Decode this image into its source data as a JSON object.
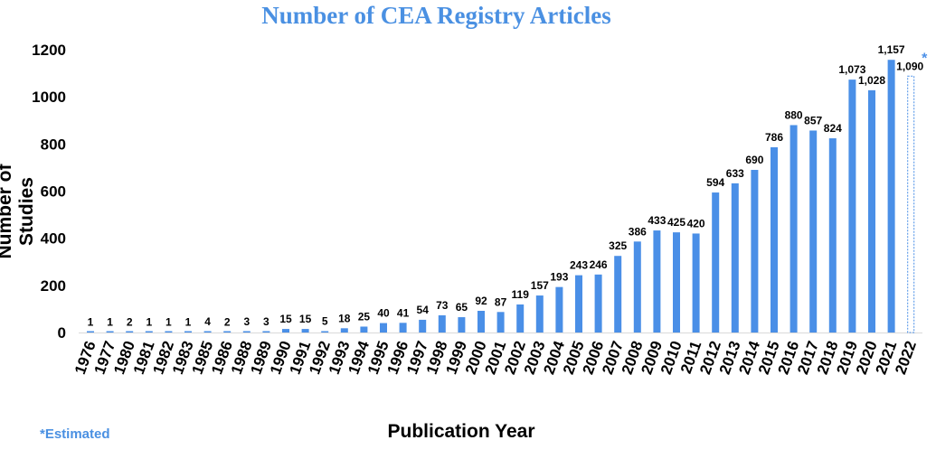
{
  "chart_data": {
    "type": "bar",
    "title": "Number of CEA Registry Articles",
    "xlabel": "Publication Year",
    "ylabel": "Number of Studies",
    "note": "*Estimated",
    "estimated_marker": "*",
    "ylim": [
      0,
      1200
    ],
    "yticks": [
      0,
      200,
      400,
      600,
      800,
      1000,
      1200
    ],
    "grid": false,
    "bar_color": "#4a8fe7",
    "estimated_color": "#4a8fe7",
    "categories": [
      "1976",
      "1977",
      "1980",
      "1981",
      "1982",
      "1983",
      "1985",
      "1986",
      "1988",
      "1989",
      "1990",
      "1991",
      "1992",
      "1993",
      "1994",
      "1995",
      "1996",
      "1997",
      "1998",
      "1999",
      "2000",
      "2001",
      "2002",
      "2003",
      "2004",
      "2005",
      "2006",
      "2007",
      "2008",
      "2009",
      "2010",
      "2011",
      "2012",
      "2013",
      "2014",
      "2015",
      "2016",
      "2017",
      "2018",
      "2019",
      "2020",
      "2021",
      "2022"
    ],
    "values": [
      1,
      1,
      2,
      1,
      1,
      1,
      4,
      2,
      3,
      3,
      15,
      15,
      5,
      18,
      25,
      40,
      41,
      54,
      73,
      65,
      92,
      87,
      119,
      157,
      193,
      243,
      246,
      325,
      386,
      433,
      425,
      420,
      594,
      633,
      690,
      786,
      880,
      857,
      824,
      1073,
      1028,
      1157,
      1090
    ],
    "data_labels": [
      "1",
      "1",
      "2",
      "1",
      "1",
      "1",
      "4",
      "2",
      "3",
      "3",
      "15",
      "15",
      "5",
      "18",
      "25",
      "40",
      "41",
      "54",
      "73",
      "65",
      "92",
      "87",
      "119",
      "157",
      "193",
      "243",
      "246",
      "325",
      "386",
      "433",
      "425",
      "420",
      "594",
      "633",
      "690",
      "786",
      "880",
      "857",
      "824",
      "1,073",
      "1,028",
      "1,157",
      "1,090"
    ],
    "estimated_categories": [
      "2022"
    ]
  }
}
